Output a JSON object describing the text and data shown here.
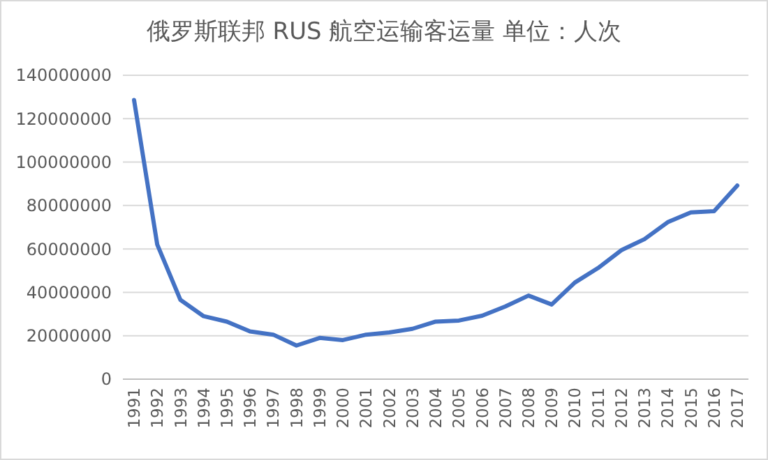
{
  "chart_data": {
    "type": "line",
    "title": "俄罗斯联邦 RUS 航空运输客运量 单位：人次",
    "categories": [
      "1991",
      "1992",
      "1993",
      "1994",
      "1995",
      "1996",
      "1997",
      "1998",
      "1999",
      "2000",
      "2001",
      "2002",
      "2003",
      "2004",
      "2005",
      "2006",
      "2007",
      "2008",
      "2009",
      "2010",
      "2011",
      "2012",
      "2013",
      "2014",
      "2015",
      "2016",
      "2017"
    ],
    "series": [
      {
        "color": "#4472c4",
        "values": [
          128600000,
          62000000,
          36500000,
          29000000,
          26500000,
          22000000,
          20500000,
          15500000,
          19000000,
          18000000,
          20500000,
          21500000,
          23200000,
          26500000,
          27000000,
          29200000,
          33500000,
          38500000,
          34400000,
          44500000,
          51200000,
          59400000,
          64500000,
          72300000,
          76800000,
          77400000,
          89200000
        ]
      }
    ],
    "ylim": [
      0,
      140000000
    ],
    "yticks": [
      0,
      20000000,
      40000000,
      60000000,
      80000000,
      100000000,
      120000000,
      140000000
    ],
    "grid": "y",
    "marker": "none",
    "line_style": "solid"
  }
}
